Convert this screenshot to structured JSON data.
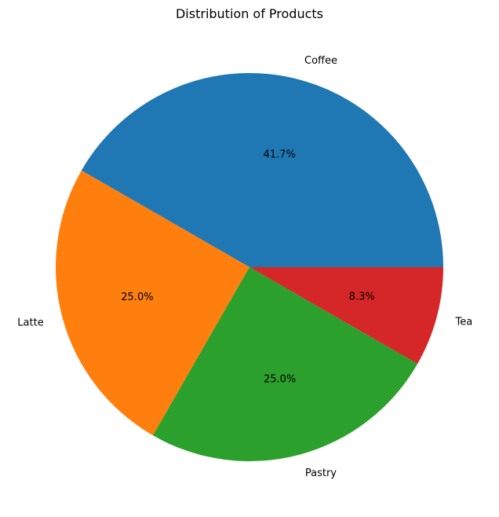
{
  "chart_data": {
    "type": "pie",
    "title": "Distribution of Products",
    "categories": [
      "Coffee",
      "Latte",
      "Pastry",
      "Tea"
    ],
    "values": [
      41.7,
      25.0,
      25.0,
      8.3
    ],
    "value_labels": [
      "41.7%",
      "25.0%",
      "25.0%",
      "8.3%"
    ],
    "colors": [
      "#1f77b4",
      "#ff7f0e",
      "#2ca02c",
      "#d62728"
    ],
    "start_angle_deg": 0,
    "direction": "counterclockwise",
    "legend": "none"
  }
}
